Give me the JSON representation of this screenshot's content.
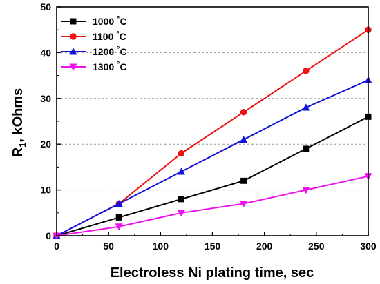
{
  "chart_data": {
    "type": "line",
    "title": "",
    "xlabel": "Electroless Ni plating time, sec",
    "ylabel": "R",
    "ylabel_subscript": "1",
    "ylabel_suffix": ", kOhms",
    "xlim": [
      0,
      300
    ],
    "ylim": [
      0,
      50
    ],
    "xticks": [
      0,
      50,
      100,
      150,
      200,
      250,
      300
    ],
    "yticks": [
      0,
      10,
      20,
      30,
      40,
      50
    ],
    "grid": "horizontal dashed",
    "legend_position": "top-left",
    "series": [
      {
        "name": "1000",
        "name_unit": "°C",
        "color": "#000000",
        "marker": "square",
        "x": [
          0,
          60,
          120,
          180,
          240,
          300
        ],
        "y": [
          0,
          4,
          8,
          12,
          19,
          26
        ]
      },
      {
        "name": "1100",
        "name_unit": "°C",
        "color": "#ee1111",
        "marker": "circle",
        "x": [
          0,
          60,
          120,
          180,
          240,
          300
        ],
        "y": [
          0,
          7,
          18,
          27,
          36,
          45
        ]
      },
      {
        "name": "1200",
        "name_unit": "°C",
        "color": "#1111dd",
        "marker": "triangle-up",
        "x": [
          0,
          60,
          120,
          180,
          240,
          300
        ],
        "y": [
          0,
          7,
          14,
          21,
          28,
          34
        ]
      },
      {
        "name": "1300",
        "name_unit": "°C",
        "color": "#ee11ee",
        "marker": "triangle-down",
        "x": [
          0,
          60,
          120,
          180,
          240,
          300
        ],
        "y": [
          0,
          2,
          5,
          7,
          10,
          13
        ]
      }
    ]
  }
}
